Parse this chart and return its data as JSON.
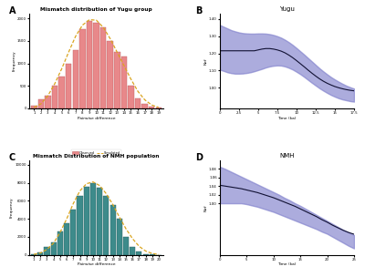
{
  "panel_A_title": "Mismatch distribution of Yugu group",
  "panel_B_title": "Yugu",
  "panel_C_title": "Mismatch Distribution of NMH population",
  "panel_D_title": "NMH",
  "yugu_observed": [
    50,
    200,
    280,
    500,
    700,
    1000,
    1300,
    1750,
    1950,
    1900,
    1800,
    1500,
    1250,
    1150,
    500,
    220,
    100,
    30,
    10
  ],
  "nmh_observed": [
    100,
    300,
    900,
    1400,
    2600,
    3500,
    5000,
    6500,
    7600,
    8000,
    7500,
    6500,
    5500,
    4000,
    2000,
    900,
    350,
    100,
    30,
    10
  ],
  "bar_color_A": "#E8888A",
  "bar_edge_A": "#C06060",
  "bar_color_C": "#3D8B8B",
  "bar_edge_C": "#2A6060",
  "sim_line_color": "#DAA520",
  "nef_fill_color": "#8080CC",
  "nef_line_color": "#111133",
  "figure_bg": "#FFFFFF",
  "yugu_sim_x": [
    1,
    2,
    3,
    4,
    5,
    6,
    7,
    8,
    9,
    10,
    11,
    12,
    13,
    14,
    15,
    16,
    17,
    18,
    19
  ],
  "yugu_sim_y": [
    20,
    100,
    280,
    550,
    880,
    1250,
    1600,
    1850,
    1970,
    1960,
    1800,
    1550,
    1250,
    950,
    650,
    380,
    190,
    75,
    22
  ],
  "nmh_sim_x": [
    1,
    2,
    3,
    4,
    5,
    6,
    7,
    8,
    9,
    10,
    11,
    12,
    13,
    14,
    15,
    16,
    17,
    18,
    19,
    20
  ],
  "nmh_sim_y": [
    50,
    200,
    600,
    1300,
    2500,
    4000,
    5700,
    7100,
    7900,
    8100,
    7700,
    6800,
    5600,
    4200,
    2900,
    1800,
    950,
    420,
    150,
    40
  ],
  "yugu_nef_x": [
    0.0,
    0.5,
    1.0,
    1.5,
    2.0,
    2.5,
    3.0,
    3.5,
    4.0,
    4.5,
    5.0,
    5.5,
    6.0,
    6.5,
    7.0,
    7.5,
    8.0,
    8.5,
    9.0,
    9.5,
    10.0,
    10.5,
    11.0,
    11.5,
    12.0,
    12.5,
    13.0,
    13.5,
    14.0,
    14.5,
    15.0,
    15.5,
    16.0,
    16.5,
    17.0,
    17.5
  ],
  "yugu_nef_mid": [
    1.215,
    1.215,
    1.215,
    1.215,
    1.215,
    1.215,
    1.215,
    1.215,
    1.215,
    1.215,
    1.22,
    1.225,
    1.228,
    1.228,
    1.225,
    1.22,
    1.213,
    1.203,
    1.19,
    1.175,
    1.158,
    1.14,
    1.122,
    1.103,
    1.085,
    1.068,
    1.052,
    1.038,
    1.026,
    1.016,
    1.007,
    1.0,
    0.994,
    0.989,
    0.985,
    0.982
  ],
  "yugu_nef_upper": [
    1.365,
    1.355,
    1.345,
    1.335,
    1.328,
    1.322,
    1.318,
    1.316,
    1.315,
    1.315,
    1.316,
    1.316,
    1.315,
    1.312,
    1.307,
    1.3,
    1.291,
    1.279,
    1.265,
    1.249,
    1.231,
    1.212,
    1.193,
    1.173,
    1.153,
    1.133,
    1.113,
    1.095,
    1.078,
    1.062,
    1.048,
    1.035,
    1.023,
    1.012,
    1.003,
    0.995
  ],
  "yugu_nef_lower": [
    1.105,
    1.098,
    1.09,
    1.085,
    1.082,
    1.082,
    1.083,
    1.086,
    1.09,
    1.096,
    1.103,
    1.11,
    1.118,
    1.124,
    1.128,
    1.13,
    1.129,
    1.124,
    1.116,
    1.106,
    1.093,
    1.079,
    1.063,
    1.046,
    1.029,
    1.013,
    0.997,
    0.983,
    0.97,
    0.958,
    0.948,
    0.939,
    0.932,
    0.927,
    0.922,
    0.919
  ],
  "yugu_yticks": [
    1.0,
    1.1,
    1.2,
    1.3,
    1.4
  ],
  "yugu_xticks": [
    0,
    2.5,
    5.0,
    7.5,
    10.0,
    12.5,
    15.0,
    17.5
  ],
  "yugu_ylim": [
    0.88,
    1.43
  ],
  "yugu_xlim": [
    0,
    17.5
  ],
  "nmh_nef_x": [
    0.0,
    1.0,
    2.0,
    3.0,
    4.0,
    5.0,
    6.0,
    7.0,
    8.0,
    9.0,
    10.0,
    11.0,
    12.0,
    13.0,
    14.0,
    15.0,
    16.0,
    17.0,
    18.0,
    19.0,
    20.0,
    21.0,
    22.0,
    23.0,
    24.0,
    25.0
  ],
  "nmh_nef_mid": [
    1.042,
    1.04,
    1.038,
    1.036,
    1.034,
    1.031,
    1.028,
    1.025,
    1.021,
    1.017,
    1.013,
    1.008,
    1.003,
    0.998,
    0.993,
    0.987,
    0.981,
    0.975,
    0.969,
    0.962,
    0.956,
    0.949,
    0.943,
    0.937,
    0.932,
    0.928
  ],
  "nmh_nef_upper": [
    1.085,
    1.08,
    1.074,
    1.068,
    1.062,
    1.056,
    1.05,
    1.044,
    1.038,
    1.032,
    1.026,
    1.02,
    1.013,
    1.007,
    1.0,
    0.994,
    0.987,
    0.98,
    0.973,
    0.966,
    0.959,
    0.952,
    0.945,
    0.938,
    0.932,
    0.926
  ],
  "nmh_nef_lower": [
    1.0,
    1.0,
    1.0,
    1.0,
    1.0,
    0.998,
    0.995,
    0.992,
    0.988,
    0.984,
    0.98,
    0.975,
    0.97,
    0.965,
    0.96,
    0.955,
    0.95,
    0.945,
    0.94,
    0.934,
    0.929,
    0.922,
    0.915,
    0.908,
    0.901,
    0.895
  ],
  "nmh_yticks": [
    1.0,
    1.02,
    1.04,
    1.06,
    1.08
  ],
  "nmh_xticks": [
    0,
    5,
    10,
    15,
    20,
    25
  ],
  "nmh_ylim": [
    0.88,
    1.1
  ],
  "nmh_xlim": [
    0,
    25
  ],
  "yugu_ytick_labels": [
    "1.00",
    "1.10",
    "1.20",
    "1.30",
    "1.40"
  ],
  "nmh_ytick_labels": [
    "1.00",
    "1.02",
    "1.04",
    "1.06",
    "1.08"
  ]
}
